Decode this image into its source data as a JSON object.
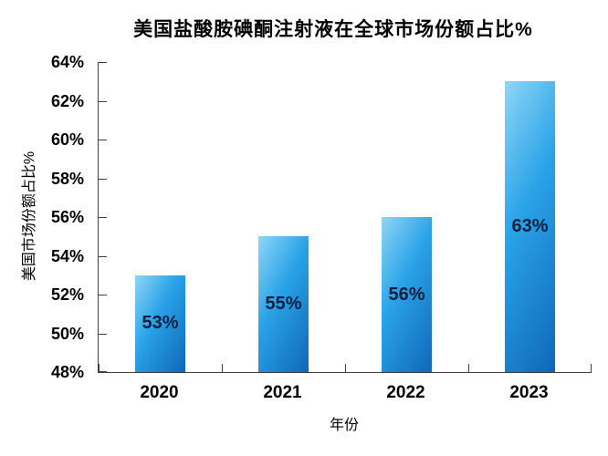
{
  "chart_data": {
    "type": "bar",
    "title": "美国盐酸胺碘酮注射液在全球市场份额占比%",
    "xlabel": "年份",
    "ylabel": "美国市场份额占比%",
    "categories": [
      "2020",
      "2021",
      "2022",
      "2023"
    ],
    "values": [
      53,
      55,
      56,
      63
    ],
    "bar_labels": [
      "53%",
      "55%",
      "56%",
      "63%"
    ],
    "ylim": [
      48,
      64
    ],
    "ytick_step": 2,
    "ytick_labels": [
      "64%",
      "62%",
      "60%",
      "58%",
      "56%",
      "54%",
      "52%",
      "50%",
      "48%"
    ],
    "grid": false,
    "legend": null,
    "colors": {
      "bar_gradient_start": "#8fd6f7",
      "bar_gradient_mid": "#2aa3e8",
      "bar_gradient_end": "#0f67b9",
      "bar_label_text": "#0c1f3e",
      "axis": "#404040",
      "text": "#000000",
      "background": "#ffffff"
    }
  }
}
